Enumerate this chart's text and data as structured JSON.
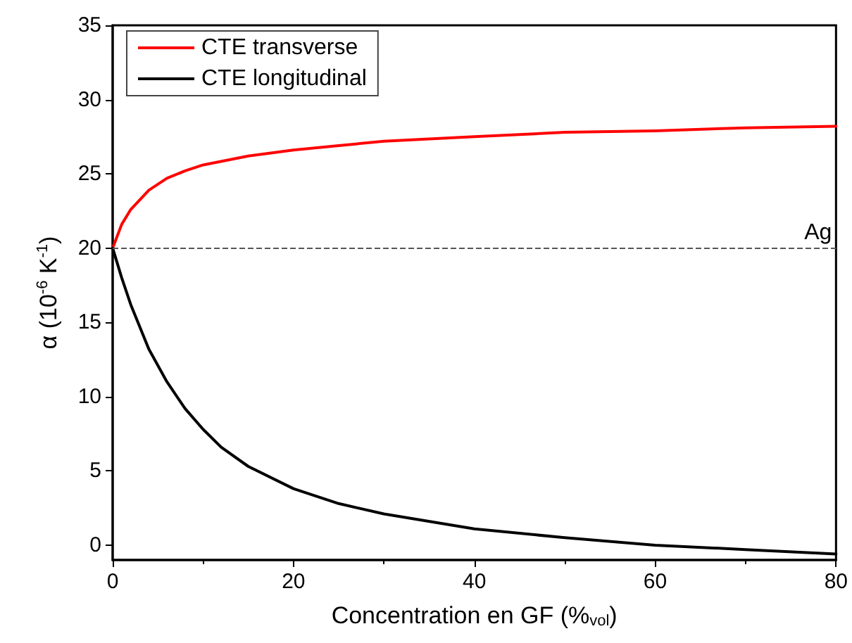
{
  "chart_data": {
    "type": "line",
    "xlabel": "Concentration en GF (%$_{vol}$)",
    "ylabel": "α (10$^{-6}$ K$^{-1}$)",
    "xlim": [
      0,
      80
    ],
    "xticks": [
      0,
      20,
      40,
      60,
      80
    ],
    "ylim": [
      -1,
      35
    ],
    "yticks": [
      0,
      5,
      10,
      15,
      20,
      25,
      30,
      35
    ],
    "grid": false,
    "legend": "top left",
    "marker": "none",
    "line_style": "solid",
    "series": [
      {
        "name": "CTE transverse",
        "color": "#ff0000",
        "x": [
          0,
          1,
          2,
          4,
          6,
          8,
          10,
          15,
          20,
          25,
          30,
          40,
          50,
          60,
          70,
          80
        ],
        "values": [
          20,
          21.6,
          22.6,
          23.9,
          24.7,
          25.2,
          25.6,
          26.2,
          26.6,
          26.9,
          27.2,
          27.5,
          27.8,
          27.9,
          28.1,
          28.2
        ]
      },
      {
        "name": "CTE longitudinal",
        "color": "#000000",
        "x": [
          0,
          1,
          2,
          4,
          6,
          8,
          10,
          12,
          15,
          20,
          25,
          30,
          40,
          50,
          60,
          70,
          80
        ],
        "values": [
          20,
          18,
          16.2,
          13.2,
          11,
          9.2,
          7.8,
          6.6,
          5.3,
          3.8,
          2.8,
          2.1,
          1.1,
          0.5,
          0,
          -0.3,
          -0.6
        ]
      }
    ],
    "ref_lines": [
      {
        "axis": "y",
        "value": 20,
        "label": "Ag",
        "color": "#555555",
        "line_style": "dashed"
      }
    ]
  }
}
